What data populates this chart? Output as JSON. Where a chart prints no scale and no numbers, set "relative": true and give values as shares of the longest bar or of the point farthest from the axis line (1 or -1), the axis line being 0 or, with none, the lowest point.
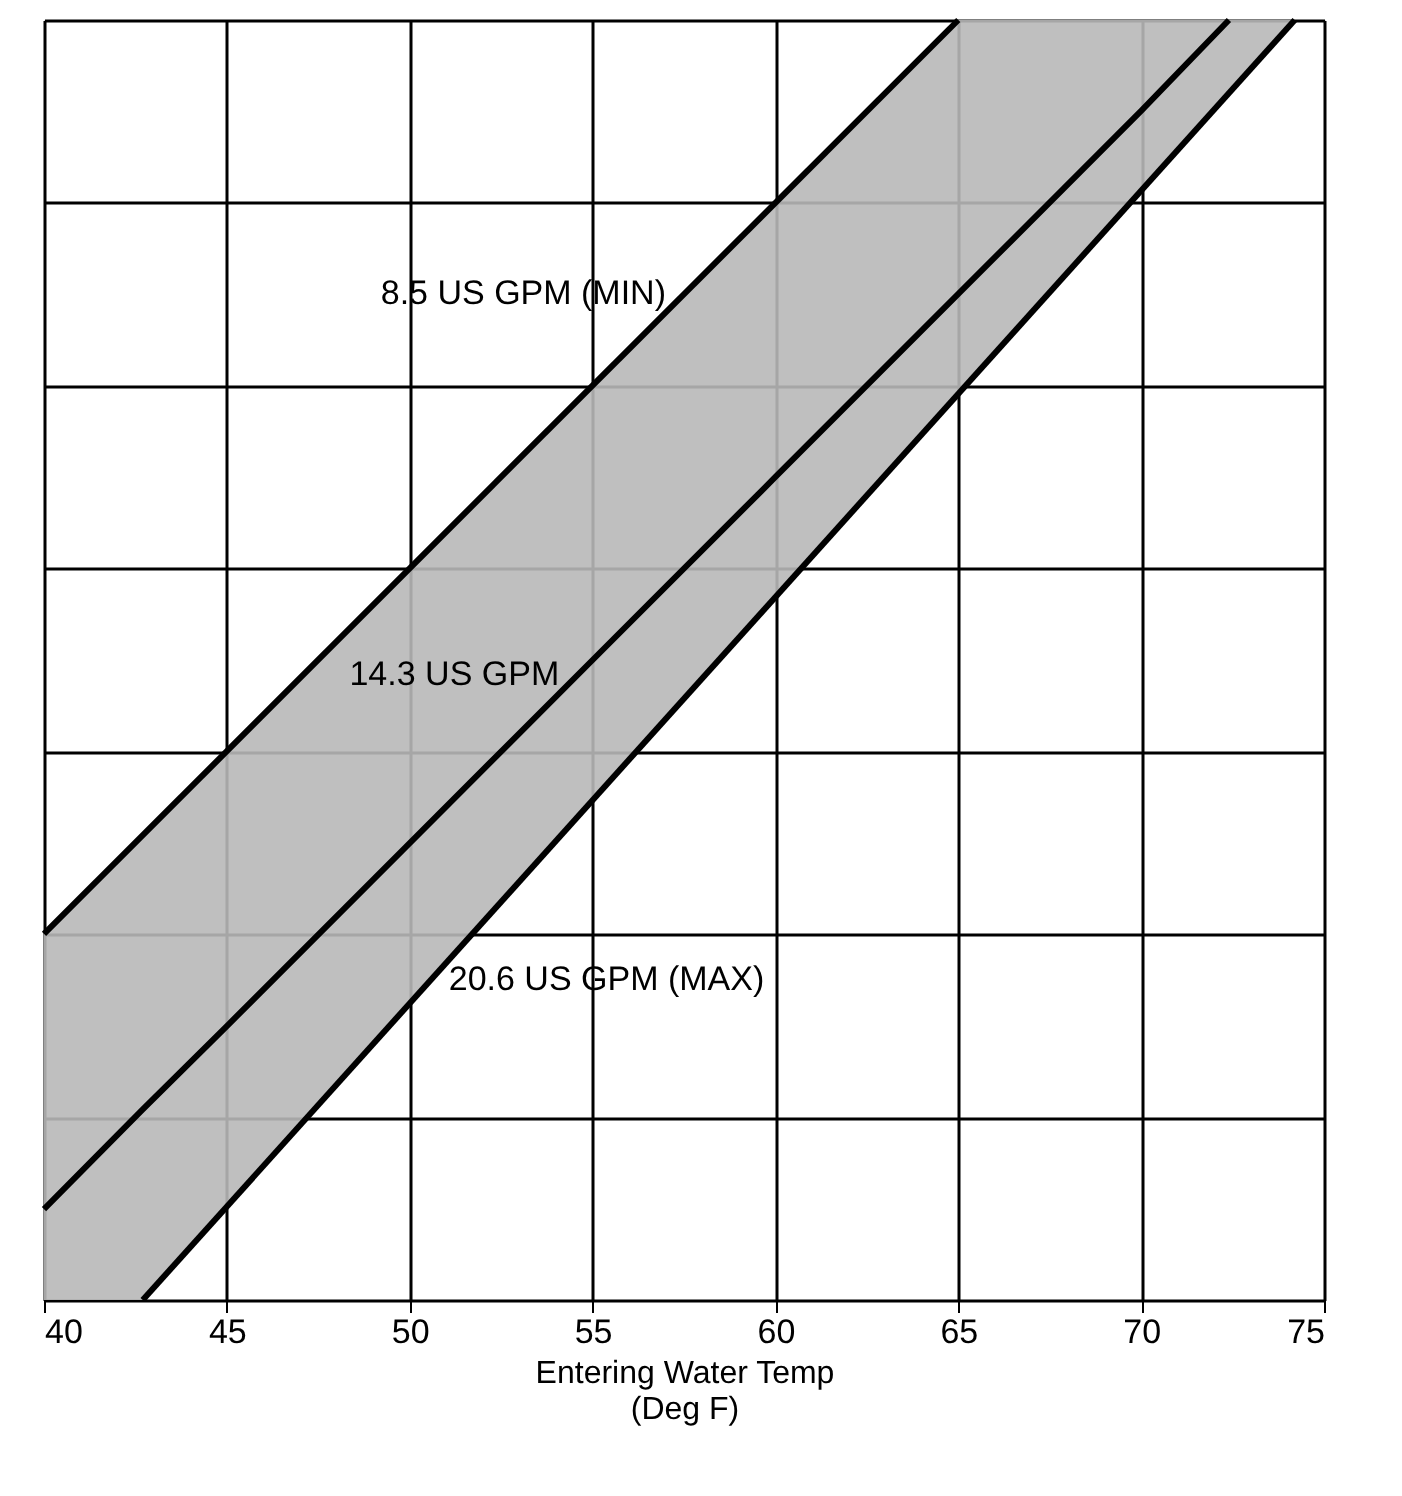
{
  "chart_data": {
    "type": "line",
    "relative": true,
    "xlabel": "Entering Water Temp\n(Deg F)",
    "xlim": [
      40,
      75
    ],
    "xticks": [
      40,
      45,
      50,
      55,
      60,
      65,
      70,
      75
    ],
    "grid": true,
    "legend": false,
    "line_style": "solid",
    "marker": "none",
    "series": [
      {
        "name": "8.5 US GPM (MIN)",
        "color": "#000000",
        "x": [
          40,
          65
        ],
        "values": [
          0.286,
          1
        ]
      },
      {
        "name": "14.3 US GPM",
        "color": "#000000",
        "x": [
          40,
          42.7,
          45,
          50,
          55,
          60,
          65,
          70,
          72.4,
          74.2
        ],
        "values": [
          0.071,
          0.149,
          0.214,
          0.357,
          0.5,
          0.643,
          0.786,
          0.929,
          1,
          null
        ],
        "lower": [
          0,
          0,
          0.073,
          0.231,
          0.39,
          0.549,
          0.709,
          0.867,
          0.943,
          1
        ],
        "upper": [
          0.286,
          0.363,
          0.429,
          0.571,
          0.714,
          0.857,
          1,
          1,
          1,
          1
        ]
      },
      {
        "name": "20.6 US GPM (MAX)",
        "color": "#000000",
        "x": [
          42.7,
          74.2
        ],
        "values": [
          0,
          1
        ]
      }
    ]
  }
}
